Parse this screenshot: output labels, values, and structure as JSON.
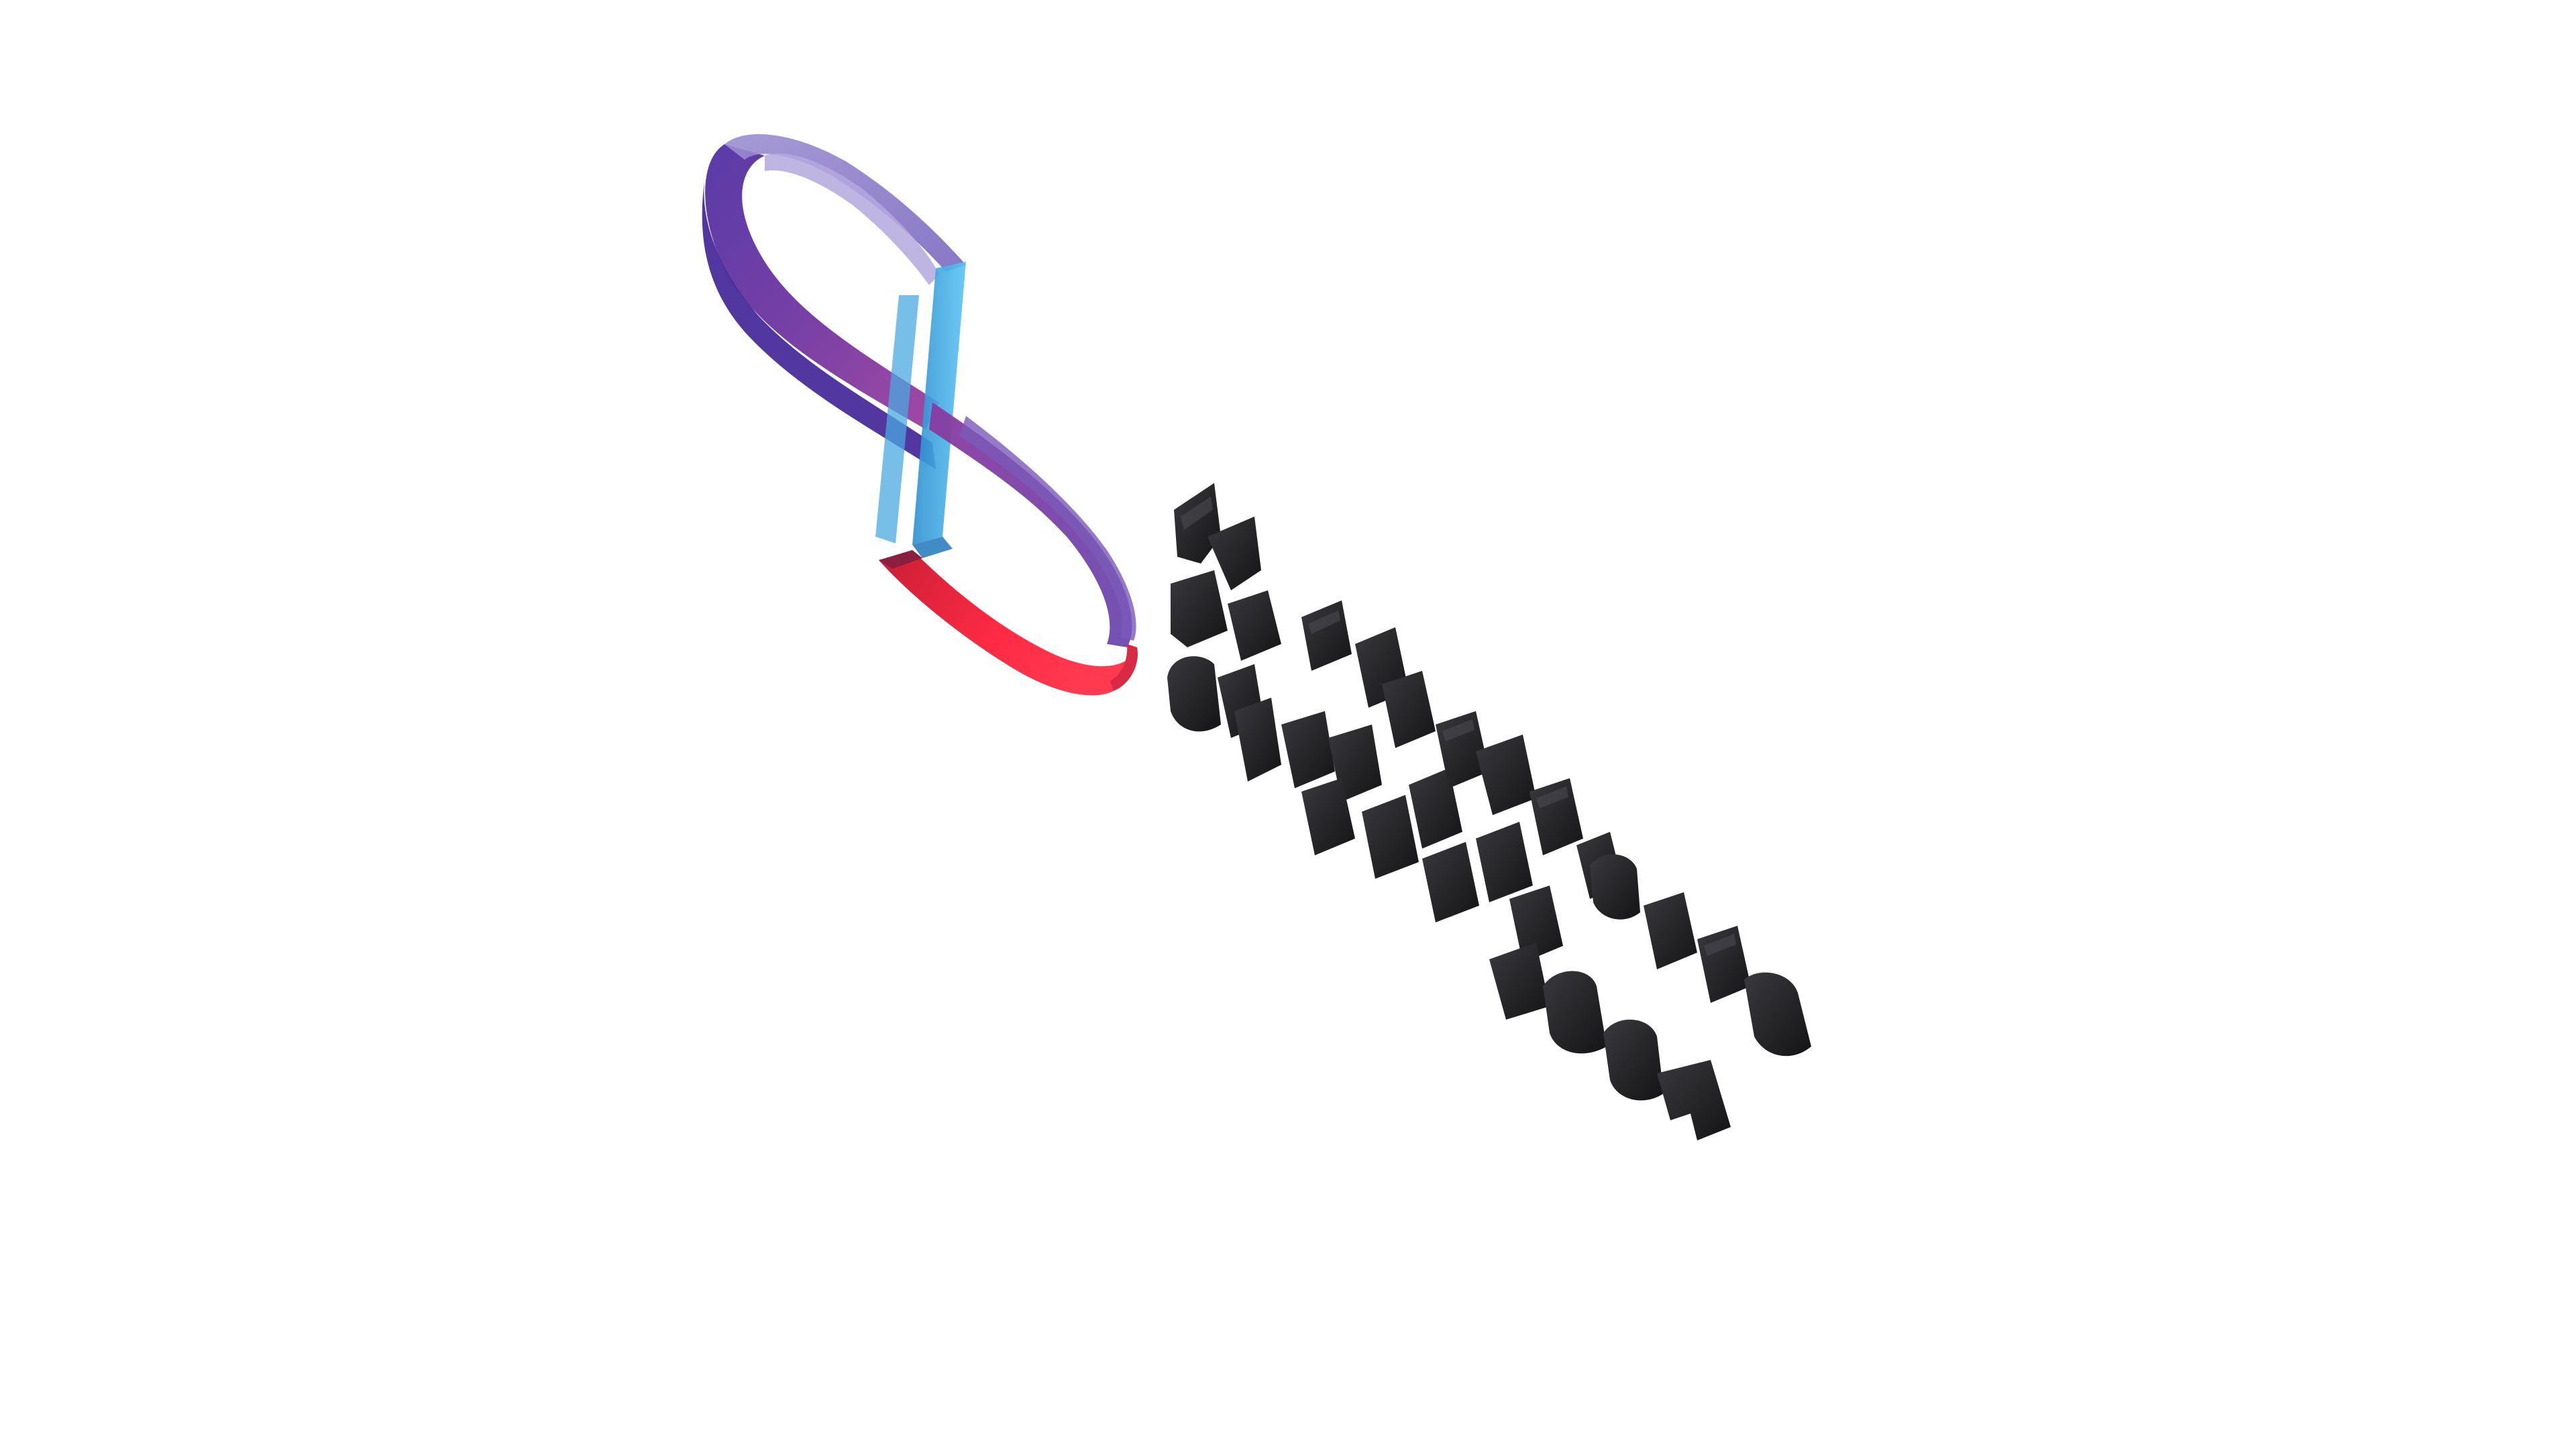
{
  "scene": {
    "background": "#ffffff",
    "logo_colors": {
      "purple_light": "#8a78c4",
      "purple_dark": "#4b2aa0",
      "magenta": "#8a3aa0",
      "cyan": "#4fb6ee",
      "cyan_dark": "#2d8fd0",
      "red": "#ff2a44",
      "red_dark": "#c81e36"
    },
    "letter_color": "#1c1c1e",
    "letter_highlight": "#3a3a3e"
  }
}
